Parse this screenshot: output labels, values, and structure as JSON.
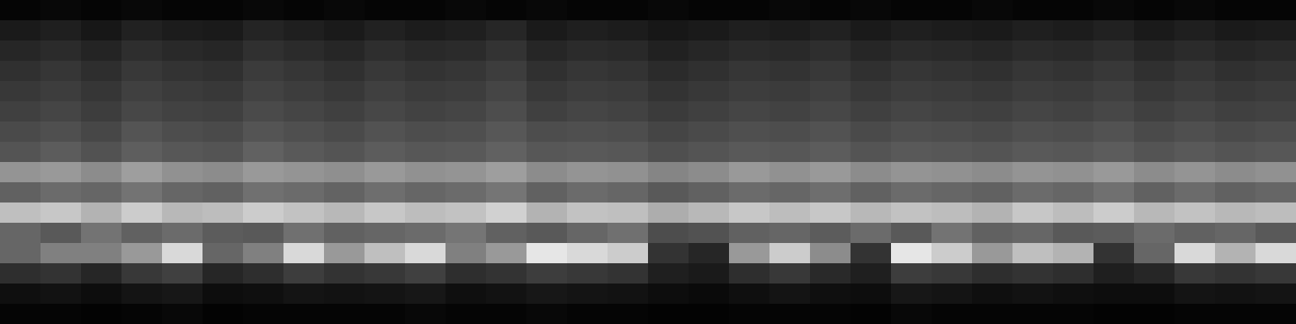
{
  "chart_data": {
    "type": "heatmap",
    "tick_labels": false,
    "zlim": [
      0,
      1
    ],
    "values": [
      [
        0.02,
        0.03,
        0.02,
        0.03,
        0.02,
        0.02,
        0.03,
        0.02,
        0.03,
        0.02,
        0.02,
        0.03,
        0.02,
        0.03,
        0.02,
        0.02,
        0.03,
        0.02,
        0.02,
        0.03,
        0.02,
        0.03,
        0.02,
        0.02,
        0.03,
        0.02,
        0.02,
        0.03,
        0.02,
        0.03,
        0.02,
        0.02
      ],
      [
        0.1,
        0.12,
        0.09,
        0.13,
        0.11,
        0.1,
        0.14,
        0.12,
        0.1,
        0.13,
        0.11,
        0.12,
        0.15,
        0.1,
        0.12,
        0.11,
        0.09,
        0.1,
        0.12,
        0.11,
        0.13,
        0.1,
        0.12,
        0.11,
        0.1,
        0.12,
        0.11,
        0.13,
        0.1,
        0.12,
        0.1,
        0.11
      ],
      [
        0.15,
        0.17,
        0.14,
        0.18,
        0.16,
        0.15,
        0.19,
        0.17,
        0.15,
        0.18,
        0.16,
        0.17,
        0.2,
        0.15,
        0.17,
        0.16,
        0.13,
        0.15,
        0.17,
        0.16,
        0.18,
        0.15,
        0.17,
        0.16,
        0.15,
        0.17,
        0.16,
        0.18,
        0.15,
        0.17,
        0.15,
        0.16
      ],
      [
        0.19,
        0.21,
        0.18,
        0.22,
        0.2,
        0.19,
        0.23,
        0.21,
        0.19,
        0.22,
        0.2,
        0.21,
        0.24,
        0.19,
        0.21,
        0.2,
        0.17,
        0.19,
        0.21,
        0.2,
        0.22,
        0.19,
        0.21,
        0.2,
        0.19,
        0.21,
        0.2,
        0.22,
        0.19,
        0.21,
        0.19,
        0.2
      ],
      [
        0.22,
        0.24,
        0.21,
        0.25,
        0.23,
        0.22,
        0.26,
        0.24,
        0.22,
        0.25,
        0.23,
        0.24,
        0.27,
        0.22,
        0.24,
        0.23,
        0.2,
        0.22,
        0.24,
        0.23,
        0.25,
        0.22,
        0.24,
        0.23,
        0.22,
        0.24,
        0.23,
        0.25,
        0.22,
        0.24,
        0.22,
        0.23
      ],
      [
        0.25,
        0.27,
        0.24,
        0.28,
        0.26,
        0.25,
        0.29,
        0.27,
        0.25,
        0.28,
        0.26,
        0.27,
        0.3,
        0.25,
        0.27,
        0.26,
        0.23,
        0.25,
        0.27,
        0.26,
        0.28,
        0.25,
        0.27,
        0.26,
        0.25,
        0.27,
        0.26,
        0.28,
        0.25,
        0.27,
        0.25,
        0.26
      ],
      [
        0.29,
        0.31,
        0.28,
        0.33,
        0.3,
        0.29,
        0.33,
        0.31,
        0.29,
        0.32,
        0.3,
        0.31,
        0.34,
        0.3,
        0.31,
        0.3,
        0.27,
        0.29,
        0.31,
        0.3,
        0.32,
        0.29,
        0.31,
        0.3,
        0.29,
        0.31,
        0.3,
        0.32,
        0.29,
        0.31,
        0.29,
        0.3
      ],
      [
        0.33,
        0.36,
        0.32,
        0.37,
        0.34,
        0.33,
        0.38,
        0.35,
        0.33,
        0.36,
        0.34,
        0.35,
        0.38,
        0.34,
        0.35,
        0.34,
        0.31,
        0.33,
        0.35,
        0.34,
        0.36,
        0.33,
        0.35,
        0.34,
        0.33,
        0.35,
        0.34,
        0.36,
        0.33,
        0.35,
        0.33,
        0.34
      ],
      [
        0.58,
        0.6,
        0.55,
        0.62,
        0.57,
        0.55,
        0.6,
        0.58,
        0.56,
        0.6,
        0.57,
        0.58,
        0.62,
        0.55,
        0.58,
        0.57,
        0.52,
        0.55,
        0.6,
        0.57,
        0.6,
        0.55,
        0.58,
        0.57,
        0.55,
        0.58,
        0.57,
        0.6,
        0.55,
        0.58,
        0.55,
        0.57
      ],
      [
        0.38,
        0.42,
        0.4,
        0.45,
        0.4,
        0.38,
        0.44,
        0.42,
        0.39,
        0.43,
        0.4,
        0.42,
        0.46,
        0.38,
        0.42,
        0.4,
        0.35,
        0.38,
        0.42,
        0.4,
        0.43,
        0.38,
        0.42,
        0.4,
        0.38,
        0.42,
        0.4,
        0.44,
        0.38,
        0.42,
        0.38,
        0.4
      ],
      [
        0.75,
        0.78,
        0.7,
        0.8,
        0.72,
        0.74,
        0.8,
        0.76,
        0.72,
        0.78,
        0.74,
        0.76,
        0.82,
        0.7,
        0.76,
        0.75,
        0.68,
        0.72,
        0.78,
        0.74,
        0.78,
        0.72,
        0.76,
        0.74,
        0.7,
        0.78,
        0.74,
        0.8,
        0.72,
        0.76,
        0.72,
        0.74
      ],
      [
        0.4,
        0.35,
        0.45,
        0.38,
        0.42,
        0.36,
        0.35,
        0.44,
        0.38,
        0.4,
        0.42,
        0.46,
        0.38,
        0.35,
        0.4,
        0.44,
        0.3,
        0.32,
        0.38,
        0.4,
        0.36,
        0.42,
        0.35,
        0.45,
        0.38,
        0.4,
        0.35,
        0.36,
        0.42,
        0.38,
        0.4,
        0.35
      ],
      [
        0.4,
        0.5,
        0.5,
        0.6,
        0.85,
        0.4,
        0.5,
        0.85,
        0.6,
        0.75,
        0.85,
        0.5,
        0.6,
        0.9,
        0.85,
        0.8,
        0.2,
        0.15,
        0.6,
        0.8,
        0.55,
        0.2,
        0.9,
        0.8,
        0.6,
        0.75,
        0.7,
        0.2,
        0.4,
        0.85,
        0.7,
        0.85
      ],
      [
        0.18,
        0.2,
        0.15,
        0.22,
        0.25,
        0.15,
        0.18,
        0.24,
        0.2,
        0.22,
        0.25,
        0.18,
        0.2,
        0.24,
        0.22,
        0.2,
        0.12,
        0.1,
        0.18,
        0.22,
        0.16,
        0.12,
        0.24,
        0.22,
        0.18,
        0.2,
        0.18,
        0.12,
        0.15,
        0.22,
        0.2,
        0.22
      ],
      [
        0.06,
        0.07,
        0.05,
        0.08,
        0.09,
        0.05,
        0.06,
        0.08,
        0.07,
        0.08,
        0.09,
        0.06,
        0.07,
        0.09,
        0.08,
        0.07,
        0.05,
        0.04,
        0.06,
        0.08,
        0.06,
        0.05,
        0.09,
        0.08,
        0.06,
        0.07,
        0.06,
        0.05,
        0.05,
        0.08,
        0.07,
        0.08
      ],
      [
        0.02,
        0.02,
        0.01,
        0.02,
        0.03,
        0.01,
        0.02,
        0.02,
        0.02,
        0.02,
        0.03,
        0.02,
        0.02,
        0.03,
        0.02,
        0.02,
        0.01,
        0.01,
        0.02,
        0.02,
        0.02,
        0.01,
        0.03,
        0.02,
        0.02,
        0.02,
        0.02,
        0.01,
        0.01,
        0.02,
        0.02,
        0.02
      ]
    ]
  }
}
